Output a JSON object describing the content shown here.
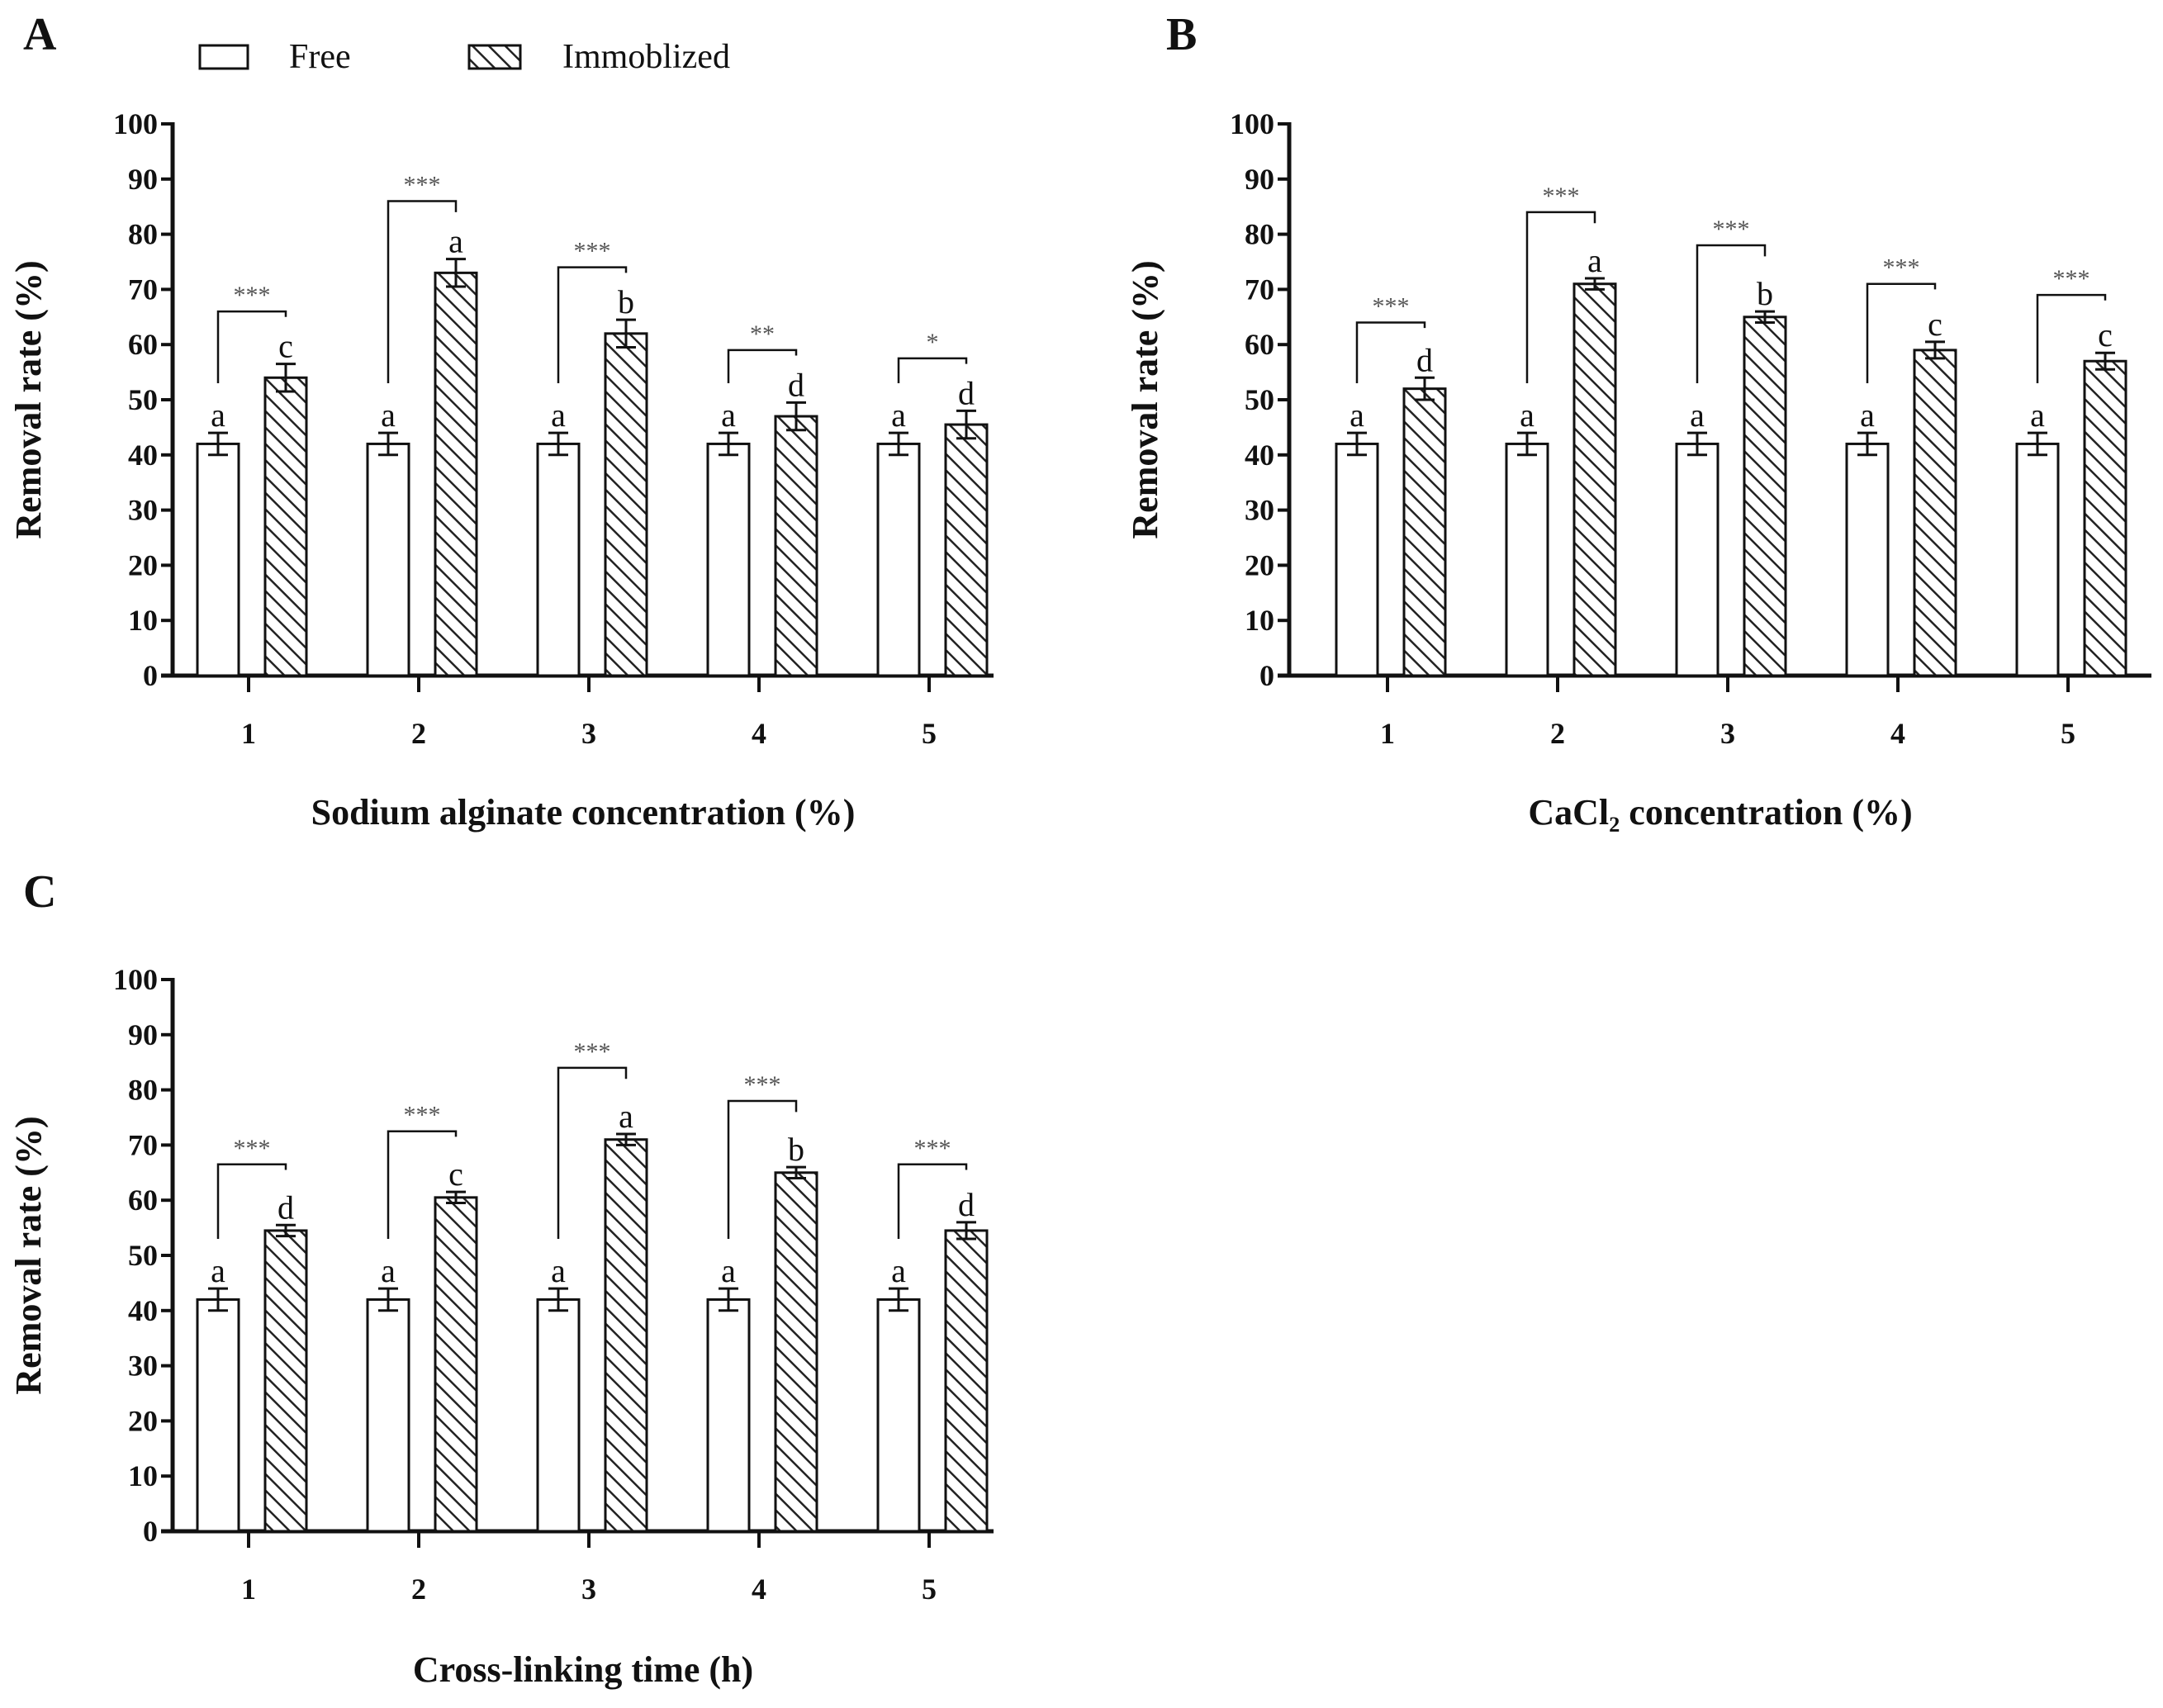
{
  "legend": {
    "free": "Free",
    "immobilized": "Immoblized"
  },
  "colors": {
    "free_fill": "#ffffff",
    "hatch": "#222222",
    "axis": "#111111"
  },
  "chart_data": [
    {
      "panel": "A",
      "type": "bar",
      "xlabel": "Sodium alginate concentration (%)",
      "ylabel": "Removal rate (%)",
      "ylim": [
        0,
        100
      ],
      "yticks": [
        0,
        10,
        20,
        30,
        40,
        50,
        60,
        70,
        80,
        90,
        100
      ],
      "categories": [
        "1",
        "2",
        "3",
        "4",
        "5"
      ],
      "series": [
        {
          "name": "Free",
          "values": [
            42,
            42,
            42,
            42,
            42
          ],
          "errors": [
            2,
            2,
            2,
            2,
            2
          ],
          "letters": [
            "a",
            "a",
            "a",
            "a",
            "a"
          ]
        },
        {
          "name": "Immoblized",
          "values": [
            54,
            73,
            62,
            47,
            45.5
          ],
          "errors": [
            2.5,
            2.5,
            2.5,
            2.5,
            2.5
          ],
          "letters": [
            "c",
            "a",
            "b",
            "d",
            "d"
          ]
        }
      ],
      "significance": [
        "***",
        "***",
        "***",
        "**",
        "*"
      ],
      "grid": false
    },
    {
      "panel": "B",
      "type": "bar",
      "xlabel": "CaCl₂ concentration (%)",
      "ylabel": "Removal rate (%)",
      "ylim": [
        0,
        100
      ],
      "yticks": [
        0,
        10,
        20,
        30,
        40,
        50,
        60,
        70,
        80,
        90,
        100
      ],
      "categories": [
        "1",
        "2",
        "3",
        "4",
        "5"
      ],
      "series": [
        {
          "name": "Free",
          "values": [
            42,
            42,
            42,
            42,
            42
          ],
          "errors": [
            2,
            2,
            2,
            2,
            2
          ],
          "letters": [
            "a",
            "a",
            "a",
            "a",
            "a"
          ]
        },
        {
          "name": "Immoblized",
          "values": [
            52,
            71,
            65,
            59,
            57
          ],
          "errors": [
            2,
            1,
            1,
            1.5,
            1.5
          ],
          "letters": [
            "d",
            "a",
            "b",
            "c",
            "c"
          ]
        }
      ],
      "significance": [
        "***",
        "***",
        "***",
        "***",
        "***"
      ],
      "grid": false
    },
    {
      "panel": "C",
      "type": "bar",
      "xlabel": "Cross-linking time (h)",
      "ylabel": "Removal rate (%)",
      "ylim": [
        0,
        100
      ],
      "yticks": [
        0,
        10,
        20,
        30,
        40,
        50,
        60,
        70,
        80,
        90,
        100
      ],
      "categories": [
        "1",
        "2",
        "3",
        "4",
        "5"
      ],
      "series": [
        {
          "name": "Free",
          "values": [
            42,
            42,
            42,
            42,
            42
          ],
          "errors": [
            2,
            2,
            2,
            2,
            2
          ],
          "letters": [
            "a",
            "a",
            "a",
            "a",
            "a"
          ]
        },
        {
          "name": "Immoblized",
          "values": [
            54.5,
            60.5,
            71,
            65,
            54.5
          ],
          "errors": [
            1,
            1,
            1,
            1,
            1.5
          ],
          "letters": [
            "d",
            "c",
            "a",
            "b",
            "d"
          ]
        }
      ],
      "significance": [
        "***",
        "***",
        "***",
        "***",
        "***"
      ],
      "grid": false
    }
  ]
}
